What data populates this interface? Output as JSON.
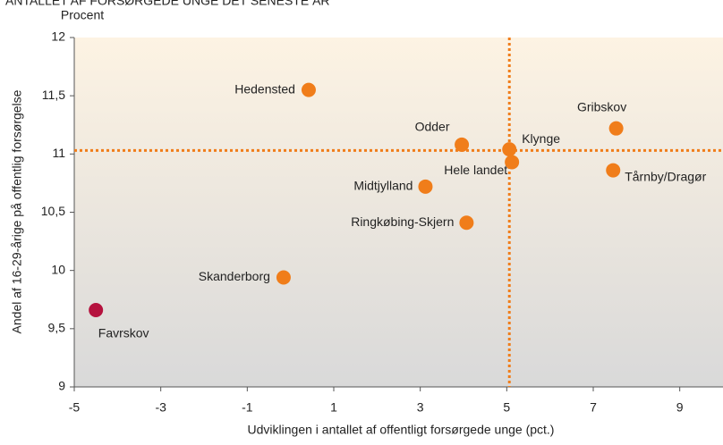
{
  "chart_data": {
    "type": "scatter",
    "title": "ANTALLET AF FORSØRGEDE UNGE DET SENESTE ÅR",
    "y_unit_label": "Procent",
    "xlabel": "Udviklingen i antallet af offentligt forsørgede unge (pct.)",
    "ylabel": "Andel af 16-29-årige på offentlig forsørgelse",
    "points": [
      {
        "label": "Hedensted",
        "x": 0.42,
        "y": 11.55,
        "color": "#f07d1a"
      },
      {
        "label": "Odder",
        "x": 3.96,
        "y": 11.08,
        "color": "#f07d1a"
      },
      {
        "label": "Klynge",
        "x": 5.06,
        "y": 11.04,
        "color": "#f07d1a"
      },
      {
        "label": "Hele landet",
        "x": 5.12,
        "y": 10.93,
        "color": "#f07d1a"
      },
      {
        "label": "Midtjylland",
        "x": 3.12,
        "y": 10.72,
        "color": "#f07d1a"
      },
      {
        "label": "Ringkøbing-Skjern",
        "x": 4.07,
        "y": 10.41,
        "color": "#f07d1a"
      },
      {
        "label": "Gribskov",
        "x": 7.53,
        "y": 11.22,
        "color": "#f07d1a"
      },
      {
        "label": "Tårnby/Dragør",
        "x": 7.46,
        "y": 10.86,
        "color": "#f07d1a"
      },
      {
        "label": "Skanderborg",
        "x": -0.16,
        "y": 9.94,
        "color": "#f07d1a"
      },
      {
        "label": "Favrskov",
        "x": -4.5,
        "y": 9.66,
        "color": "#b5123e"
      }
    ],
    "reference_lines": {
      "x": 5.06,
      "y": 11.03,
      "color": "#f07d1a"
    },
    "xlim": [
      -5,
      10
    ],
    "ylim": [
      9,
      12
    ],
    "xticks": [
      -5,
      -3,
      -1,
      1,
      3,
      5,
      7,
      9
    ],
    "yticks": [
      9,
      {
        "value": 9.5,
        "label": "9,5"
      },
      10,
      {
        "value": 10.5,
        "label": "10,5"
      },
      11,
      {
        "value": 11.5,
        "label": "11,5"
      },
      12
    ]
  }
}
